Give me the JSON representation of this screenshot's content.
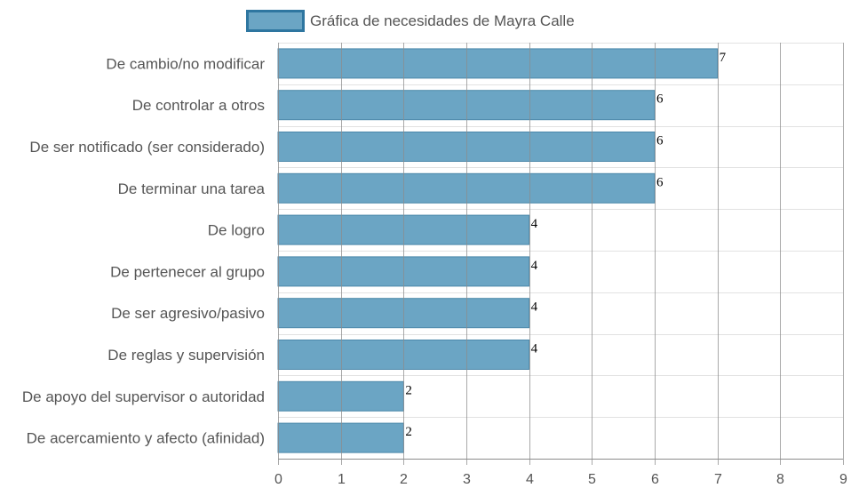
{
  "chart_data": {
    "type": "bar",
    "orientation": "horizontal",
    "legend": {
      "label": "Gráfica de necesidades de Mayra Calle",
      "placement": "top-center"
    },
    "categories": [
      "De cambio/no modificar",
      "De controlar a otros",
      "De ser notificado (ser considerado)",
      "De terminar una tarea",
      "De logro",
      "De pertenecer al grupo",
      "De ser agresivo/pasivo",
      "De reglas y supervisión",
      "De apoyo del supervisor o autoridad",
      "De acercamiento y afecto (afinidad)"
    ],
    "series": [
      {
        "name": "Gráfica de necesidades de Mayra Calle",
        "values": [
          7,
          6,
          6,
          6,
          4,
          4,
          4,
          4,
          2,
          2
        ]
      }
    ],
    "xlim": [
      0,
      9
    ],
    "x_ticks": [
      "0",
      "1",
      "2",
      "3",
      "4",
      "5",
      "6",
      "7",
      "8",
      "9"
    ],
    "grid": true,
    "data_labels": true,
    "colors": {
      "bar_fill": "#6ba5c4",
      "bar_stroke": "#4b88aa",
      "legend_border": "#2e76a0",
      "grid": "#e2e2e2",
      "grid_vertical": "#8c8c8c"
    }
  }
}
